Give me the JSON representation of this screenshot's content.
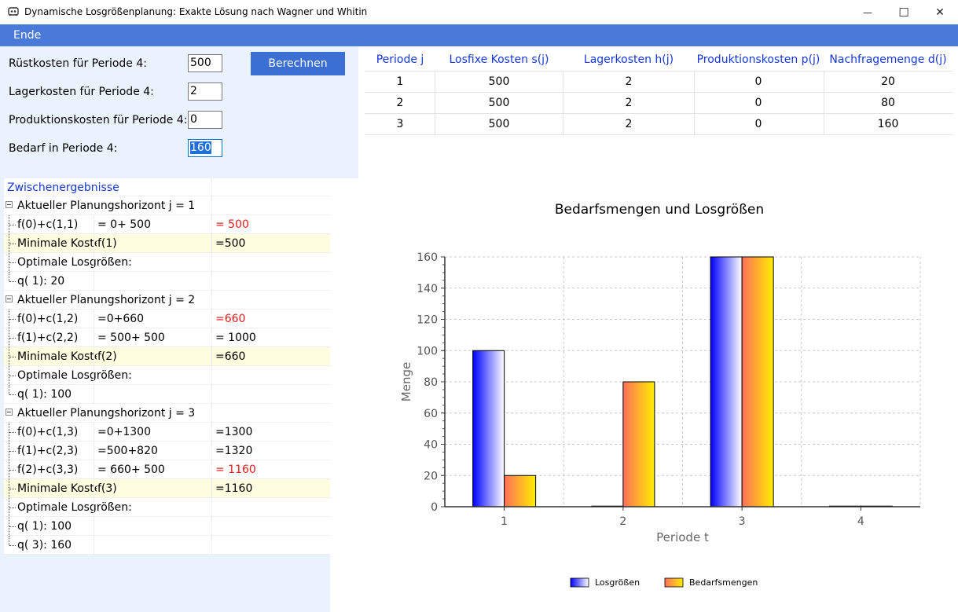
{
  "window": {
    "title": "Dynamische Losgrößenplanung: Exakte Lösung nach Wagner und Whitin",
    "minimize_glyph": "—",
    "maximize_glyph": "☐",
    "close_glyph": "✕"
  },
  "menu": {
    "ende": "Ende"
  },
  "form": {
    "ruestkosten_label": "Rüstkosten für Periode 4:",
    "ruestkosten_value": "500",
    "lagerkosten_label": "Lagerkosten für Periode 4:",
    "lagerkosten_value": "2",
    "produktionskosten_label": "Produktionskosten für Periode 4:",
    "produktionskosten_value": "0",
    "bedarf_label": "Bedarf in Periode 4:",
    "bedarf_value": "160",
    "berechnen_label": "Berechnen"
  },
  "table": {
    "headers": [
      "Periode j",
      "Losfixe Kosten s(j)",
      "Lagerkosten h(j)",
      "Produktionskosten p(j)",
      "Nachfragemenge d(j)"
    ],
    "rows": [
      [
        "1",
        "500",
        "2",
        "0",
        "20"
      ],
      [
        "2",
        "500",
        "2",
        "0",
        "80"
      ],
      [
        "3",
        "500",
        "2",
        "0",
        "160"
      ]
    ]
  },
  "tree": {
    "header": "Zwischenergebnisse",
    "rows": [
      {
        "kind": "group",
        "c1": "Aktueller Planungshorizont j =  1",
        "c2": "",
        "c3": ""
      },
      {
        "kind": "item",
        "c1": "f(0)+c(1,1)",
        "c2": "= 0+ 500",
        "c3": "= 500",
        "red": true
      },
      {
        "kind": "min",
        "c1": "Minimale Koste",
        "c2": "f(1)",
        "c3": "=500"
      },
      {
        "kind": "item",
        "c1": "Optimale Losgrößen:",
        "c2": "",
        "c3": ""
      },
      {
        "kind": "last",
        "c1": "q( 1):  20",
        "c2": "",
        "c3": ""
      },
      {
        "kind": "group",
        "c1": "Aktueller Planungshorizont j =  2",
        "c2": "",
        "c3": ""
      },
      {
        "kind": "item",
        "c1": "f(0)+c(1,2)",
        "c2": "=0+660",
        "c3": "=660",
        "red": true
      },
      {
        "kind": "item",
        "c1": "f(1)+c(2,2)",
        "c2": "= 500+ 500",
        "c3": "= 1000"
      },
      {
        "kind": "min",
        "c1": "Minimale Koste",
        "c2": "f(2)",
        "c3": "=660"
      },
      {
        "kind": "item",
        "c1": "Optimale Losgrößen:",
        "c2": "",
        "c3": ""
      },
      {
        "kind": "last",
        "c1": "q( 1):  100",
        "c2": "",
        "c3": ""
      },
      {
        "kind": "group",
        "c1": "Aktueller Planungshorizont j =  3",
        "c2": "",
        "c3": ""
      },
      {
        "kind": "item",
        "c1": "f(0)+c(1,3)",
        "c2": "=0+1300",
        "c3": "=1300"
      },
      {
        "kind": "item",
        "c1": "f(1)+c(2,3)",
        "c2": "=500+820",
        "c3": "=1320"
      },
      {
        "kind": "item",
        "c1": "f(2)+c(3,3)",
        "c2": "= 660+ 500",
        "c3": "= 1160",
        "red": true
      },
      {
        "kind": "min",
        "c1": "Minimale Koste",
        "c2": "f(3)",
        "c3": "=1160"
      },
      {
        "kind": "item",
        "c1": "Optimale Losgrößen:",
        "c2": "",
        "c3": ""
      },
      {
        "kind": "item",
        "c1": "q( 1):  100",
        "c2": "",
        "c3": ""
      },
      {
        "kind": "last",
        "c1": "q( 3):  160",
        "c2": "",
        "c3": ""
      }
    ]
  },
  "chart_data": {
    "type": "bar",
    "title": "Bedarfsmengen und Losgrößen",
    "xlabel": "Periode t",
    "ylabel": "Menge",
    "categories": [
      "1",
      "2",
      "3",
      "4"
    ],
    "ylim": [
      0,
      160
    ],
    "yticks": [
      0,
      20,
      40,
      60,
      80,
      100,
      120,
      140,
      160
    ],
    "grid": true,
    "legend_position": "bottom",
    "series": [
      {
        "name": "Losgrößen",
        "values": [
          100,
          0,
          160,
          0
        ],
        "color_from": "#0000ff",
        "color_to": "#ffffff"
      },
      {
        "name": "Bedarfsmengen",
        "values": [
          20,
          80,
          160,
          0
        ],
        "color_from": "#ff6f5a",
        "color_to": "#ffee00"
      }
    ]
  },
  "colors": {
    "menubar": "#4a7ad9",
    "button": "#3b6fd4",
    "panel": "#eaf2fd",
    "header_text": "#1636d8",
    "highlight_row": "#fefde0",
    "red_value": "#e31b1b"
  }
}
